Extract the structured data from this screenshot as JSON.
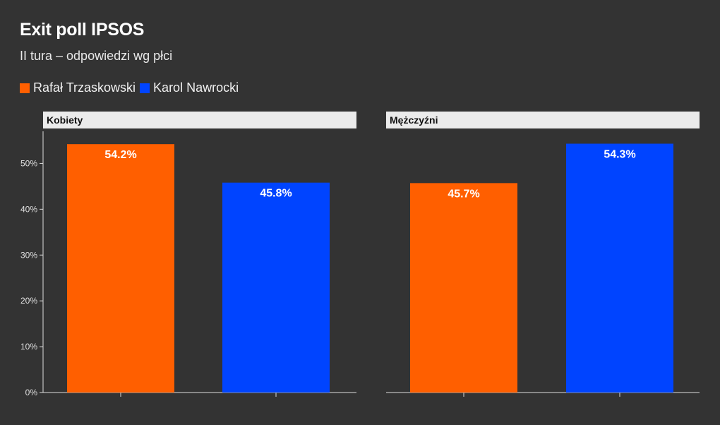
{
  "title": "Exit poll IPSOS",
  "subtitle": "II tura – odpowiedzi wg płci",
  "colors": {
    "background": "#333333",
    "rafal": "#ff5f00",
    "karol": "#0044ff",
    "panel_strip": "#ebebeb",
    "axis": "#dddddd"
  },
  "legend": [
    {
      "label": "Rafał Trzaskowski",
      "color": "#ff5f00"
    },
    {
      "label": "Karol Nawrocki",
      "color": "#0044ff"
    }
  ],
  "chart_data": {
    "type": "bar",
    "series": [
      {
        "name": "Rafał Trzaskowski",
        "color": "#ff5f00"
      },
      {
        "name": "Karol Nawrocki",
        "color": "#0044ff"
      }
    ],
    "panels": [
      {
        "title": "Kobiety",
        "values": [
          54.2,
          45.8
        ],
        "labels": [
          "54.2%",
          "45.8%"
        ]
      },
      {
        "title": "Mężczyźni",
        "values": [
          45.7,
          54.3
        ],
        "labels": [
          "45.7%",
          "54.3%"
        ]
      }
    ],
    "y_ticks": [
      0,
      10,
      20,
      30,
      40,
      50
    ],
    "y_tick_labels": [
      "0%",
      "10%",
      "20%",
      "30%",
      "40%",
      "50%"
    ],
    "ylim": [
      0,
      57
    ],
    "grid": false,
    "legend_position": "top-left"
  }
}
